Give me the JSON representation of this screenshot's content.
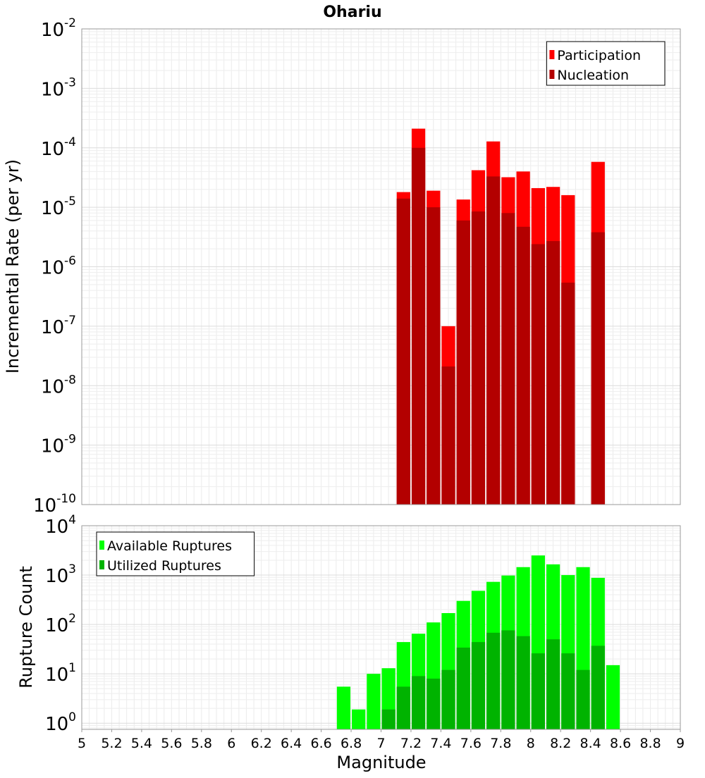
{
  "chart_data": [
    {
      "type": "bar",
      "title": "Ohariu",
      "xlabel": "",
      "ylabel": "Incremental Rate (per yr)",
      "yscale": "log",
      "ylim": [
        1e-10,
        0.01
      ],
      "xlim": [
        5,
        9
      ],
      "grid": true,
      "legend_position": "top-right",
      "bar_width": 0.1,
      "y_ticks": [
        {
          "base": "10",
          "exp": "-10",
          "value": 1e-10
        },
        {
          "base": "10",
          "exp": "-9",
          "value": 1e-09
        },
        {
          "base": "10",
          "exp": "-8",
          "value": 1e-08
        },
        {
          "base": "10",
          "exp": "-7",
          "value": 1e-07
        },
        {
          "base": "10",
          "exp": "-6",
          "value": 1e-06
        },
        {
          "base": "10",
          "exp": "-5",
          "value": 1e-05
        },
        {
          "base": "10",
          "exp": "-4",
          "value": 0.0001
        },
        {
          "base": "10",
          "exp": "-3",
          "value": 0.001
        },
        {
          "base": "10",
          "exp": "-2",
          "value": 0.01
        }
      ],
      "series": [
        {
          "name": "Participation",
          "color": "#ff0000",
          "points": [
            {
              "x": 7.15,
              "y": 1.8e-05
            },
            {
              "x": 7.25,
              "y": 0.00021
            },
            {
              "x": 7.35,
              "y": 1.9e-05
            },
            {
              "x": 7.45,
              "y": 1e-07
            },
            {
              "x": 7.55,
              "y": 1.35e-05
            },
            {
              "x": 7.65,
              "y": 4.2e-05
            },
            {
              "x": 7.75,
              "y": 0.000128
            },
            {
              "x": 7.85,
              "y": 3.2e-05
            },
            {
              "x": 7.95,
              "y": 4e-05
            },
            {
              "x": 8.05,
              "y": 2.1e-05
            },
            {
              "x": 8.15,
              "y": 2.2e-05
            },
            {
              "x": 8.25,
              "y": 1.6e-05
            },
            {
              "x": 8.45,
              "y": 5.8e-05
            }
          ]
        },
        {
          "name": "Nucleation",
          "color": "#b30000",
          "points": [
            {
              "x": 7.15,
              "y": 1.4e-05
            },
            {
              "x": 7.25,
              "y": 0.0001
            },
            {
              "x": 7.35,
              "y": 1e-05
            },
            {
              "x": 7.45,
              "y": 2.1e-08
            },
            {
              "x": 7.55,
              "y": 6e-06
            },
            {
              "x": 7.65,
              "y": 8.5e-06
            },
            {
              "x": 7.75,
              "y": 3.3e-05
            },
            {
              "x": 7.85,
              "y": 8e-06
            },
            {
              "x": 7.95,
              "y": 4.7e-06
            },
            {
              "x": 8.05,
              "y": 2.4e-06
            },
            {
              "x": 8.15,
              "y": 2.7e-06
            },
            {
              "x": 8.25,
              "y": 5.4e-07
            },
            {
              "x": 8.45,
              "y": 3.8e-06
            }
          ]
        }
      ]
    },
    {
      "type": "bar",
      "title": "",
      "xlabel": "Magnitude",
      "ylabel": "Rupture Count",
      "yscale": "log",
      "ylim": [
        0.75,
        10000.0
      ],
      "xlim": [
        5,
        9
      ],
      "grid": true,
      "legend_position": "top-left",
      "bar_width": 0.1,
      "x_ticks": [
        "5",
        "5.2",
        "5.4",
        "5.6",
        "5.8",
        "6",
        "6.2",
        "6.4",
        "6.6",
        "6.8",
        "7",
        "7.2",
        "7.4",
        "7.6",
        "7.8",
        "8",
        "8.2",
        "8.4",
        "8.6",
        "8.8",
        "9"
      ],
      "y_ticks": [
        {
          "base": "10",
          "exp": "0",
          "value": 1
        },
        {
          "base": "10",
          "exp": "1",
          "value": 10
        },
        {
          "base": "10",
          "exp": "2",
          "value": 100
        },
        {
          "base": "10",
          "exp": "3",
          "value": 1000
        },
        {
          "base": "10",
          "exp": "4",
          "value": 10000
        }
      ],
      "series": [
        {
          "name": "Available Ruptures",
          "color": "#00ff00",
          "points": [
            {
              "x": 6.75,
              "y": 5.5
            },
            {
              "x": 6.85,
              "y": 1.9
            },
            {
              "x": 6.95,
              "y": 10
            },
            {
              "x": 7.05,
              "y": 13
            },
            {
              "x": 7.15,
              "y": 44
            },
            {
              "x": 7.25,
              "y": 65
            },
            {
              "x": 7.35,
              "y": 110
            },
            {
              "x": 7.45,
              "y": 170
            },
            {
              "x": 7.55,
              "y": 300
            },
            {
              "x": 7.65,
              "y": 480
            },
            {
              "x": 7.75,
              "y": 730
            },
            {
              "x": 7.85,
              "y": 980
            },
            {
              "x": 7.95,
              "y": 1450
            },
            {
              "x": 8.05,
              "y": 2500
            },
            {
              "x": 8.15,
              "y": 1650
            },
            {
              "x": 8.25,
              "y": 1000
            },
            {
              "x": 8.35,
              "y": 1450
            },
            {
              "x": 8.45,
              "y": 880
            },
            {
              "x": 8.55,
              "y": 15
            }
          ]
        },
        {
          "name": "Utilized Ruptures",
          "color": "#00b300",
          "points": [
            {
              "x": 7.05,
              "y": 1.9
            },
            {
              "x": 7.15,
              "y": 5.5
            },
            {
              "x": 7.25,
              "y": 9
            },
            {
              "x": 7.35,
              "y": 8
            },
            {
              "x": 7.45,
              "y": 12
            },
            {
              "x": 7.55,
              "y": 34
            },
            {
              "x": 7.65,
              "y": 44
            },
            {
              "x": 7.75,
              "y": 68
            },
            {
              "x": 7.85,
              "y": 76
            },
            {
              "x": 7.95,
              "y": 58
            },
            {
              "x": 8.05,
              "y": 26
            },
            {
              "x": 8.15,
              "y": 50
            },
            {
              "x": 8.25,
              "y": 26
            },
            {
              "x": 8.35,
              "y": 12
            },
            {
              "x": 8.45,
              "y": 37
            }
          ]
        }
      ]
    }
  ]
}
